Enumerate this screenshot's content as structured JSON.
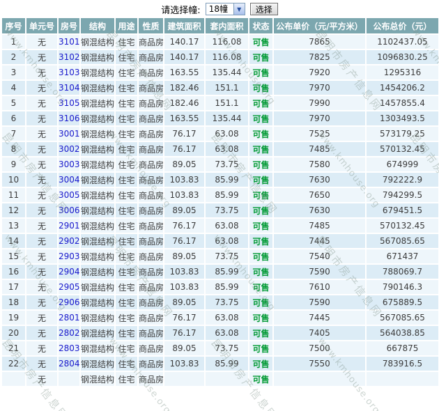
{
  "toolbar": {
    "label": "请选择幢:",
    "select_value": "18幢",
    "button_label": "选择"
  },
  "watermark": {
    "text_en": "www.kmhouse.org",
    "text_zh": "昆明市房产信息网"
  },
  "colors": {
    "header_bg": "#7ca7af",
    "header_text": "#ffffff",
    "row_odd": "#eef6fb",
    "row_even": "#dcecf6",
    "room_link": "#1818cc",
    "status_ok_green": "#009933",
    "cell_text": "#3c3c3c"
  },
  "table": {
    "columns": [
      "序号",
      "单元号",
      "房号",
      "结构",
      "用途",
      "性质",
      "建筑面积",
      "套内面积",
      "状态",
      "公布单价（元/平方米）",
      "公布总价（元）"
    ],
    "rows": [
      [
        "1",
        "无",
        "3101",
        "钢混结构",
        "住宅",
        "商品房",
        "140.17",
        "116.08",
        "可售",
        "7865",
        "1102437.05"
      ],
      [
        "2",
        "无",
        "3102",
        "钢混结构",
        "住宅",
        "商品房",
        "140.17",
        "116.08",
        "可售",
        "7825",
        "1096830.25"
      ],
      [
        "3",
        "无",
        "3103",
        "钢混结构",
        "住宅",
        "商品房",
        "163.55",
        "135.44",
        "可售",
        "7920",
        "1295316"
      ],
      [
        "4",
        "无",
        "3104",
        "钢混结构",
        "住宅",
        "商品房",
        "182.46",
        "151.1",
        "可售",
        "7970",
        "1454206.2"
      ],
      [
        "5",
        "无",
        "3105",
        "钢混结构",
        "住宅",
        "商品房",
        "182.46",
        "151.1",
        "可售",
        "7990",
        "1457855.4"
      ],
      [
        "6",
        "无",
        "3106",
        "钢混结构",
        "住宅",
        "商品房",
        "163.55",
        "135.44",
        "可售",
        "7970",
        "1303493.5"
      ],
      [
        "7",
        "无",
        "3001",
        "钢混结构",
        "住宅",
        "商品房",
        "76.17",
        "63.08",
        "可售",
        "7525",
        "573179.25"
      ],
      [
        "8",
        "无",
        "3002",
        "钢混结构",
        "住宅",
        "商品房",
        "76.17",
        "63.08",
        "可售",
        "7485",
        "570132.45"
      ],
      [
        "9",
        "无",
        "3003",
        "钢混结构",
        "住宅",
        "商品房",
        "89.05",
        "73.75",
        "可售",
        "7580",
        "674999"
      ],
      [
        "10",
        "无",
        "3004",
        "钢混结构",
        "住宅",
        "商品房",
        "103.83",
        "85.99",
        "可售",
        "7630",
        "792222.9"
      ],
      [
        "11",
        "无",
        "3005",
        "钢混结构",
        "住宅",
        "商品房",
        "103.83",
        "85.99",
        "可售",
        "7650",
        "794299.5"
      ],
      [
        "12",
        "无",
        "3006",
        "钢混结构",
        "住宅",
        "商品房",
        "89.05",
        "73.75",
        "可售",
        "7630",
        "679451.5"
      ],
      [
        "13",
        "无",
        "2901",
        "钢混结构",
        "住宅",
        "商品房",
        "76.17",
        "63.08",
        "可售",
        "7485",
        "570132.45"
      ],
      [
        "14",
        "无",
        "2902",
        "钢混结构",
        "住宅",
        "商品房",
        "76.17",
        "63.08",
        "可售",
        "7445",
        "567085.65"
      ],
      [
        "15",
        "无",
        "2903",
        "钢混结构",
        "住宅",
        "商品房",
        "89.05",
        "73.75",
        "可售",
        "7540",
        "671437"
      ],
      [
        "16",
        "无",
        "2904",
        "钢混结构",
        "住宅",
        "商品房",
        "103.83",
        "85.99",
        "可售",
        "7590",
        "788069.7"
      ],
      [
        "17",
        "无",
        "2905",
        "钢混结构",
        "住宅",
        "商品房",
        "103.83",
        "85.99",
        "可售",
        "7610",
        "790146.3"
      ],
      [
        "18",
        "无",
        "2906",
        "钢混结构",
        "住宅",
        "商品房",
        "89.05",
        "73.75",
        "可售",
        "7590",
        "675889.5"
      ],
      [
        "19",
        "无",
        "2801",
        "钢混结构",
        "住宅",
        "商品房",
        "76.17",
        "63.08",
        "可售",
        "7445",
        "567085.65"
      ],
      [
        "20",
        "无",
        "2802",
        "钢混结构",
        "住宅",
        "商品房",
        "76.17",
        "63.08",
        "可售",
        "7405",
        "564038.85"
      ],
      [
        "21",
        "无",
        "2803",
        "钢混结构",
        "住宅",
        "商品房",
        "89.05",
        "73.75",
        "可售",
        "7500",
        "667875"
      ],
      [
        "22",
        "无",
        "2804",
        "钢混结构",
        "住宅",
        "商品房",
        "103.83",
        "85.99",
        "可售",
        "7550",
        "783916.5"
      ]
    ],
    "partial_row": [
      "",
      "无",
      "",
      "钢混结构",
      "住宅",
      "商品房",
      "",
      "",
      "可售",
      "",
      ""
    ]
  }
}
